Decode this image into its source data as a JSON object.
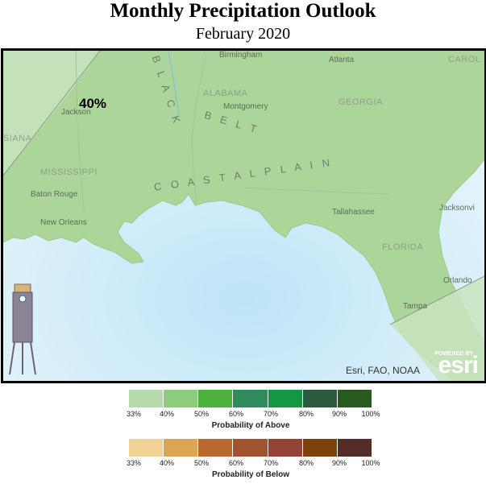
{
  "title": "Monthly Precipitation Outlook",
  "subtitle": "February 2020",
  "map": {
    "outlook_label": "40%",
    "cities": {
      "birmingham": "Birmingham",
      "atlanta": "Atlanta",
      "montgomery": "Montgomery",
      "jackson": "Jackson",
      "baton_rouge": "Baton Rouge",
      "new_orleans": "New Orleans",
      "tallahassee": "Tallahassee",
      "jacksonville": "Jacksonvi",
      "orlando": "Orlando",
      "tampa": "Tampa"
    },
    "states": {
      "alabama": "ALABAMA",
      "georgia": "GEORGIA",
      "mississippi": "MISSISSIPPI",
      "florida": "FLORIDA",
      "louisiana": "SIANA",
      "carolina": "CAROL"
    },
    "regions": {
      "black_belt_1": "B L A C K",
      "black_belt_2": "B E L T",
      "coastal_plain": "C O A S T A L   P L A I N"
    },
    "attribution": "Esri, FAO, NOAA",
    "powered_by": "POWERED BY",
    "esri_logo": "esri"
  },
  "legend_above": {
    "caption": "Probability of Above",
    "colors": [
      "#b6dcae",
      "#8dcc7c",
      "#4eb03d",
      "#2f8b5c",
      "#139645",
      "#2c5a3e",
      "#295a20"
    ],
    "ticks": [
      "33%",
      "40%",
      "50%",
      "60%",
      "70%",
      "80%",
      "90%",
      "100%"
    ]
  },
  "legend_below": {
    "caption": "Probability of Below",
    "colors": [
      "#f2d294",
      "#dba654",
      "#b9692f",
      "#a1532f",
      "#954236",
      "#7b430a",
      "#532c28"
    ],
    "ticks": [
      "33%",
      "40%",
      "50%",
      "60%",
      "70%",
      "80%",
      "90%",
      "100%"
    ]
  }
}
